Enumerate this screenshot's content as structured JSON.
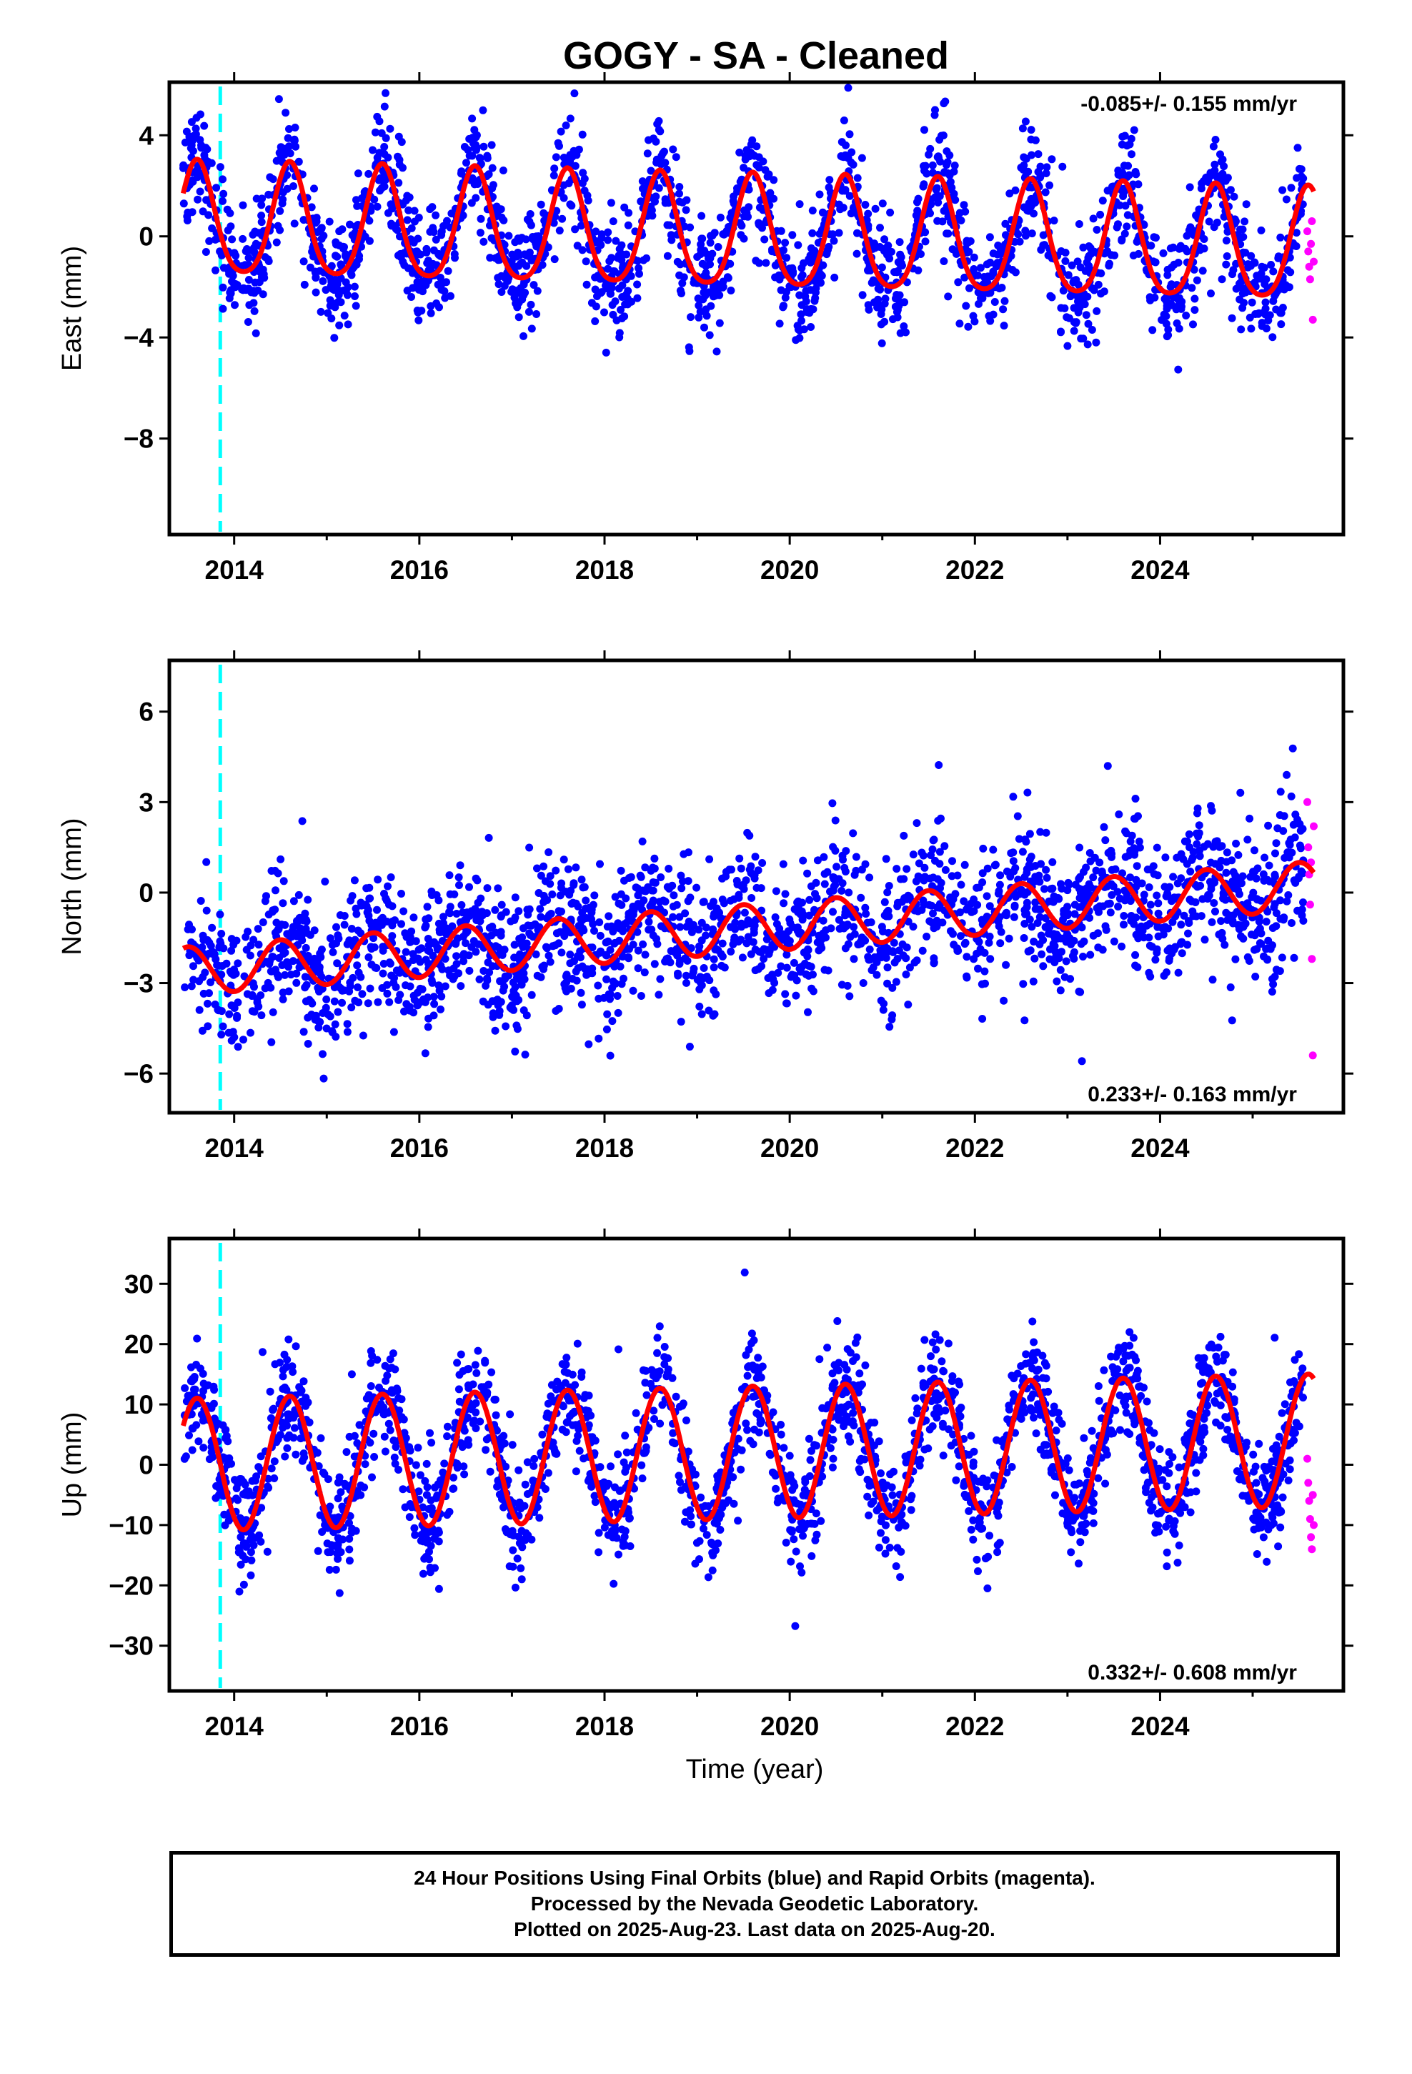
{
  "title": "GOGY  - SA - Cleaned",
  "xlabel": "Time (year)",
  "caption": [
    "24 Hour Positions Using Final Orbits (blue) and Rapid Orbits (magenta).",
    "Processed by the Nevada Geodetic Laboratory.",
    "Plotted on 2025-Aug-23. Last data on 2025-Aug-20."
  ],
  "colors": {
    "final": "#0000ff",
    "rapid": "#ff00ff",
    "model": "#ff0000",
    "event": "#00ffff",
    "frame": "#000000"
  },
  "chart_data": [
    {
      "type": "scatter",
      "ylabel": "East (mm)",
      "rate_text": "-0.085+/- 0.155 mm/yr",
      "rate_position": "top-right",
      "xlim": [
        2013.3,
        2025.98
      ],
      "ylim": [
        -11.8,
        6.1
      ],
      "xticks": [
        2014,
        2016,
        2018,
        2020,
        2022,
        2024
      ],
      "yticks": [
        4,
        0,
        -4,
        -8
      ],
      "ytick_labels": [
        "4",
        "0",
        "−4",
        "−8"
      ],
      "event_year": 2013.85,
      "final_orbits": {
        "x_range": [
          2013.45,
          2025.55
        ],
        "noise_sd": 1.1,
        "count": 2200
      },
      "rapid_orbits": {
        "x": [
          2025.59,
          2025.6,
          2025.61,
          2025.62,
          2025.63,
          2025.64,
          2025.65,
          2025.66
        ],
        "y": [
          0.2,
          -0.6,
          -1.2,
          -1.7,
          -0.3,
          0.6,
          -3.3,
          -1.0
        ]
      },
      "model": {
        "offset": 0.0,
        "offset_2014": 0.0,
        "trend": -0.085,
        "annual_amp": 2.2,
        "annual_phase_year": 2013.6,
        "semiannual_amp": 0.35,
        "semiannual_phase_year": 2013.6
      }
    },
    {
      "type": "scatter",
      "ylabel": "North (mm)",
      "rate_text": "0.233+/- 0.163 mm/yr",
      "rate_position": "bottom-right",
      "xlim": [
        2013.3,
        2025.98
      ],
      "ylim": [
        -7.3,
        7.7
      ],
      "xticks": [
        2014,
        2016,
        2018,
        2020,
        2022,
        2024
      ],
      "yticks": [
        6,
        3,
        0,
        -3,
        -6
      ],
      "ytick_labels": [
        "6",
        "3",
        "0",
        "−3",
        "−6"
      ],
      "event_year": 2013.85,
      "final_orbits": {
        "x_range": [
          2013.45,
          2025.55
        ],
        "noise_sd": 1.15,
        "count": 2200
      },
      "rapid_orbits": {
        "x": [
          2025.59,
          2025.6,
          2025.61,
          2025.62,
          2025.63,
          2025.64,
          2025.65,
          2025.66
        ],
        "y": [
          3.0,
          1.5,
          0.6,
          -0.4,
          1.0,
          -2.2,
          -5.4,
          2.2
        ]
      },
      "model": {
        "offset": -1.2,
        "trend": 0.233,
        "annual_amp": 0.8,
        "annual_phase_year": 2013.5,
        "semiannual_amp": 0.0,
        "semiannual_phase_year": 2013.5
      }
    },
    {
      "type": "scatter",
      "ylabel": "Up (mm)",
      "rate_text": "0.332+/- 0.608 mm/yr",
      "rate_position": "bottom-right",
      "xlim": [
        2013.3,
        2025.98
      ],
      "ylim": [
        -37.5,
        37.5
      ],
      "xticks": [
        2014,
        2016,
        2018,
        2020,
        2022,
        2024
      ],
      "yticks": [
        30,
        20,
        10,
        0,
        -10,
        -20,
        -30
      ],
      "ytick_labels": [
        "30",
        "20",
        "10",
        "0",
        "−10",
        "−20",
        "−30"
      ],
      "event_year": 2013.85,
      "final_orbits": {
        "x_range": [
          2013.45,
          2025.55
        ],
        "noise_sd": 4.5,
        "count": 2200
      },
      "rapid_orbits": {
        "x": [
          2025.59,
          2025.6,
          2025.61,
          2025.62,
          2025.63,
          2025.64,
          2025.65,
          2025.66
        ],
        "y": [
          1.0,
          -3.0,
          -6.0,
          -9.0,
          -12.0,
          -14.0,
          -5.0,
          -10.0
        ]
      },
      "model": {
        "offset": 2.0,
        "trend": 0.332,
        "annual_amp": 11.0,
        "annual_phase_year": 2013.6,
        "semiannual_amp": 0.0,
        "semiannual_phase_year": 2013.6
      }
    }
  ]
}
